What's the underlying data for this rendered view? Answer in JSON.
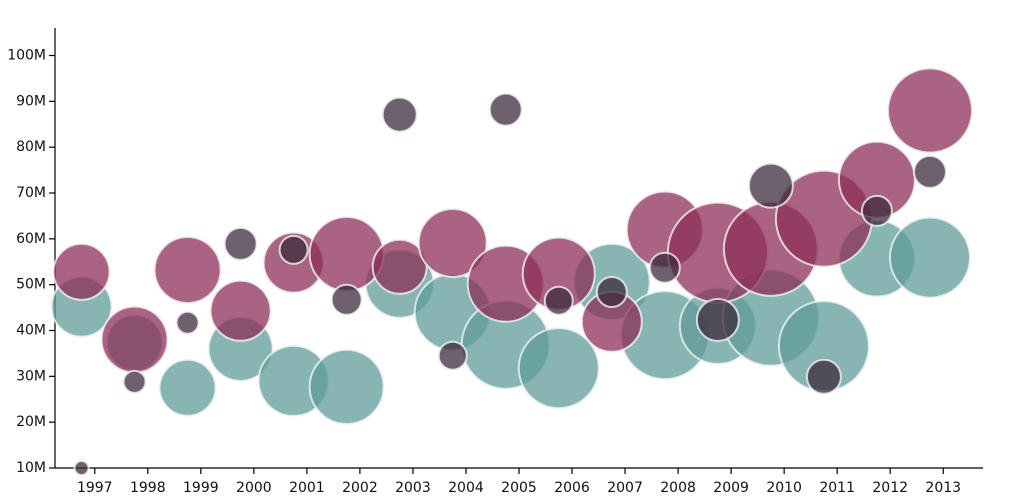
{
  "chart_data": {
    "type": "bubble",
    "x": [
      1996.75,
      1997.75,
      1998.75,
      1999.75,
      2000.75,
      2001.75,
      2002.75,
      2003.75,
      2004.75,
      2005.75,
      2006.75,
      2007.75,
      2008.75,
      2009.75,
      2010.75,
      2011.75,
      2012.75
    ],
    "xlim": [
      1996.25,
      2013.75
    ],
    "xticks": [
      1997,
      1998,
      1999,
      2000,
      2001,
      2002,
      2003,
      2004,
      2005,
      2006,
      2007,
      2008,
      2009,
      2010,
      2011,
      2012,
      2013
    ],
    "ylim": [
      10,
      106
    ],
    "yticks": [
      {
        "value": 10,
        "label": "10M"
      },
      {
        "value": 20,
        "label": "20M"
      },
      {
        "value": 30,
        "label": "30M"
      },
      {
        "value": 40,
        "label": "40M"
      },
      {
        "value": 50,
        "label": "50M"
      },
      {
        "value": 60,
        "label": "60M"
      },
      {
        "value": 70,
        "label": "70M"
      },
      {
        "value": 80,
        "label": "80M"
      },
      {
        "value": 90,
        "label": "90M"
      },
      {
        "value": 100,
        "label": "100M"
      }
    ],
    "series": [
      {
        "color": "#5f9c9a",
        "values": [
          45.2,
          37.3,
          27.5,
          36,
          29,
          27.7,
          50.2,
          44,
          36.9,
          31.8,
          50.6,
          39,
          41,
          42.8,
          36.6,
          55.7,
          55.9
        ],
        "sizes": [
          30,
          28,
          28,
          32,
          35,
          37,
          34,
          38,
          44,
          40,
          38,
          44,
          38,
          48,
          45,
          38,
          40
        ]
      },
      {
        "color": "#8e2f58",
        "values": [
          52.8,
          38,
          53.2,
          44.3,
          54.8,
          56.7,
          53.9,
          59.1,
          50.2,
          52.4,
          41.9,
          62,
          57,
          57.8,
          64.4,
          72.9,
          88
        ],
        "sizes": [
          28,
          33,
          33,
          30,
          30,
          37,
          27,
          34,
          38,
          36,
          30,
          38,
          50,
          47,
          48,
          38,
          42
        ]
      },
      {
        "color": "#3d2b3d",
        "values": [
          10,
          28.8,
          41.7,
          58.9,
          57.6,
          46.7,
          87.1,
          34.5,
          88.2,
          46.5,
          48.4,
          53.7,
          42.3,
          71.6,
          29.9,
          66.1,
          74.6
        ],
        "sizes": [
          7,
          11,
          11,
          16,
          14,
          15,
          17,
          14,
          16,
          14,
          15,
          15,
          21,
          22,
          17,
          15,
          16
        ]
      }
    ]
  }
}
